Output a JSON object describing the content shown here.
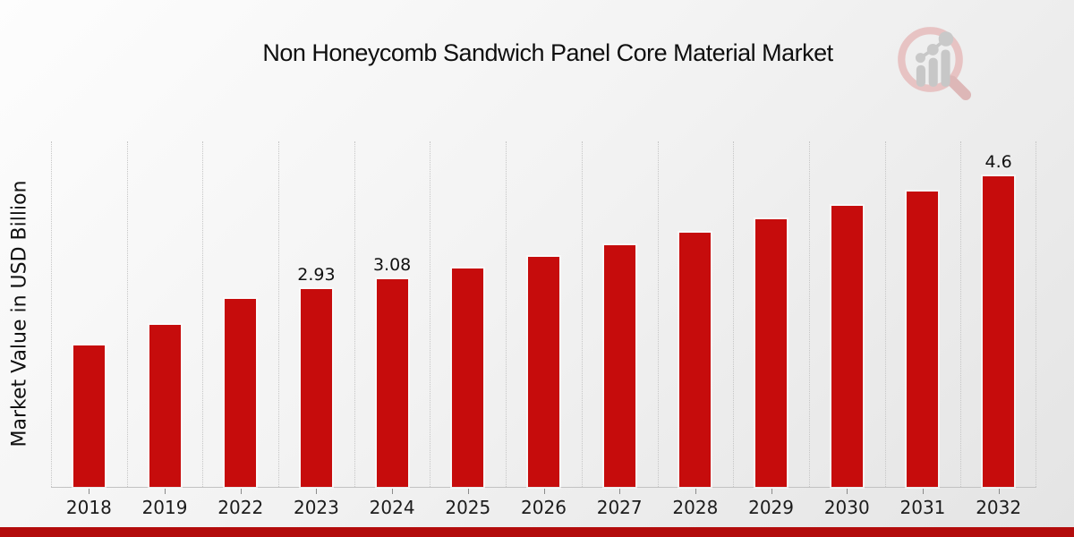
{
  "header": {
    "title": "Non Honeycomb Sandwich Panel Core Material Market",
    "logo_name": "market-research-future-magnifier-logo"
  },
  "colors": {
    "bar": "#c60c0c",
    "footer_bar": "#b30c0c",
    "gridline": "#c6c6c6",
    "logo_ring": "#e7c3c3",
    "logo_bars": "#c7c7c7"
  },
  "chart_data": {
    "type": "bar",
    "title": "Non Honeycomb Sandwich Panel Core Material Market",
    "xlabel": "",
    "ylabel": "Market Value in USD Billion",
    "categories": [
      "2018",
      "2019",
      "2022",
      "2023",
      "2024",
      "2025",
      "2026",
      "2027",
      "2028",
      "2029",
      "2030",
      "2031",
      "2032"
    ],
    "values": [
      2.1,
      2.4,
      2.79,
      2.93,
      3.08,
      3.24,
      3.41,
      3.58,
      3.77,
      3.96,
      4.16,
      4.38,
      4.6
    ],
    "point_labels": [
      "",
      "",
      "",
      "2.93",
      "3.08",
      "",
      "",
      "",
      "",
      "",
      "",
      "",
      "4.6"
    ],
    "ylim": [
      0,
      5.13
    ],
    "grid": "vertical-dotted",
    "legend": "none",
    "y_axis_ticks_visible": false
  }
}
